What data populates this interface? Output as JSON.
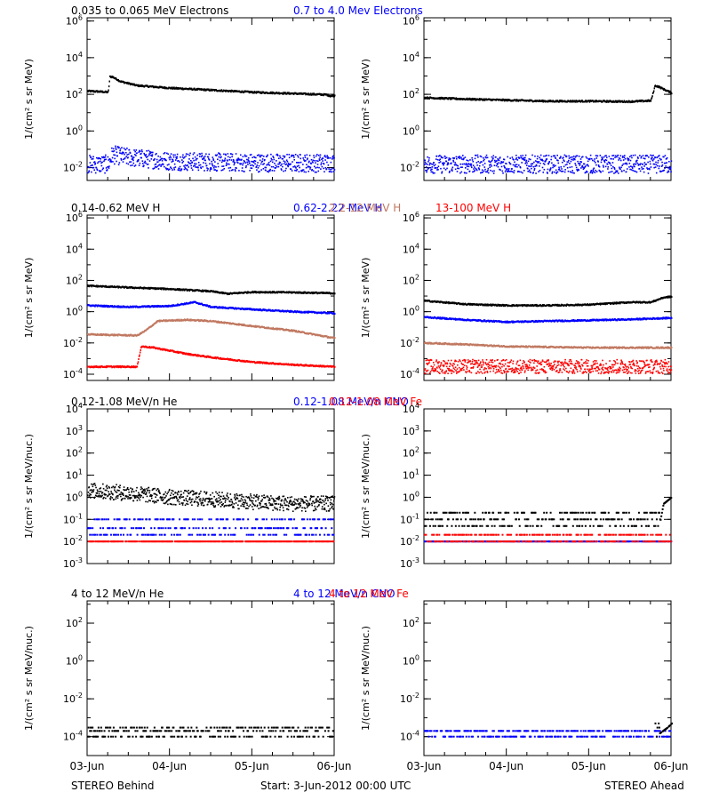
{
  "footer": {
    "left": "STEREO Behind",
    "center": "Start:  3-Jun-2012 00:00 UTC",
    "right": "STEREO Ahead"
  },
  "colors": {
    "black": "#000000",
    "blue": "#0000ff",
    "tan": "#c07860",
    "red": "#ff0000"
  },
  "chart_data": [
    {
      "type": "scatter",
      "panel": "electrons",
      "title_parts": [
        {
          "text": "0.035 to 0.065 MeV Electrons",
          "color": "black"
        },
        {
          "text": "0.7 to 4.0 Mev Electrons",
          "color": "blue"
        }
      ],
      "ylabel": "1/(cm² s sr MeV)",
      "y_scale": "log",
      "ylim": [
        0.002,
        1500000
      ],
      "y_ticks": [
        {
          "value": 0.01,
          "base": "10",
          "exp": "-2"
        },
        {
          "value": 1,
          "base": "10",
          "exp": "0"
        },
        {
          "value": 100,
          "base": "10",
          "exp": "2"
        },
        {
          "value": 10000,
          "base": "10",
          "exp": "4"
        },
        {
          "value": 1000000,
          "base": "10",
          "exp": "6"
        }
      ],
      "x_tick_labels": [
        "03-Jun",
        "04-Jun",
        "05-Jun",
        "06-Jun"
      ],
      "behind": [
        {
          "name": "0.035 to 0.065 MeV Electrons",
          "color": "black",
          "pattern": "line",
          "points": [
            [
              0,
              150
            ],
            [
              0.15,
              140
            ],
            [
              0.25,
              130
            ],
            [
              0.27,
              900
            ],
            [
              0.3,
              900
            ],
            [
              0.4,
              500
            ],
            [
              0.6,
              300
            ],
            [
              1.0,
              220
            ],
            [
              1.5,
              170
            ],
            [
              2.0,
              130
            ],
            [
              2.5,
              110
            ],
            [
              2.9,
              95
            ],
            [
              2.95,
              80
            ],
            [
              3.0,
              85
            ]
          ]
        },
        {
          "name": "0.7 to 4.0 Mev Electrons",
          "color": "blue",
          "pattern": "band",
          "points": [
            [
              0,
              0.015
            ],
            [
              0.25,
              0.015
            ],
            [
              0.3,
              0.05
            ],
            [
              0.5,
              0.035
            ],
            [
              1.0,
              0.022
            ],
            [
              2.0,
              0.018
            ],
            [
              3.0,
              0.017
            ]
          ],
          "spread": 0.5
        }
      ],
      "ahead": [
        {
          "name": "0.035 to 0.065 MeV Electrons",
          "color": "black",
          "pattern": "line",
          "points": [
            [
              0,
              65
            ],
            [
              0.5,
              55
            ],
            [
              1.0,
              48
            ],
            [
              1.5,
              42
            ],
            [
              2.0,
              42
            ],
            [
              2.5,
              40
            ],
            [
              2.75,
              45
            ],
            [
              2.8,
              300
            ],
            [
              2.85,
              250
            ],
            [
              2.95,
              150
            ],
            [
              3.0,
              120
            ]
          ]
        },
        {
          "name": "0.7 to 4.0 Mev Electrons",
          "color": "blue",
          "pattern": "band",
          "points": [
            [
              0,
              0.015
            ],
            [
              1.0,
              0.015
            ],
            [
              2.0,
              0.015
            ],
            [
              3.0,
              0.015
            ]
          ],
          "spread": 0.5
        }
      ]
    },
    {
      "type": "scatter",
      "panel": "protons",
      "title_parts": [
        {
          "text": "0.14-0.62 MeV H",
          "color": "black"
        },
        {
          "text": "0.62-2.22 MeV H",
          "color": "blue"
        },
        {
          "text": "2.2-12 MeV H",
          "color": "tan"
        },
        {
          "text": "13-100 MeV H",
          "color": "red"
        }
      ],
      "ylabel": "1/(cm² s sr MeV)",
      "y_scale": "log",
      "ylim": [
        4e-05,
        1500000
      ],
      "y_ticks": [
        {
          "value": 0.0001,
          "base": "10",
          "exp": "-4"
        },
        {
          "value": 0.01,
          "base": "10",
          "exp": "-2"
        },
        {
          "value": 1,
          "base": "10",
          "exp": "0"
        },
        {
          "value": 100,
          "base": "10",
          "exp": "2"
        },
        {
          "value": 10000,
          "base": "10",
          "exp": "4"
        },
        {
          "value": 1000000,
          "base": "10",
          "exp": "6"
        }
      ],
      "x_tick_labels": [
        "03-Jun",
        "04-Jun",
        "05-Jun",
        "06-Jun"
      ],
      "behind": [
        {
          "name": "0.14-0.62 MeV H",
          "color": "black",
          "pattern": "line",
          "points": [
            [
              0,
              45
            ],
            [
              0.5,
              35
            ],
            [
              1.0,
              28
            ],
            [
              1.5,
              20
            ],
            [
              1.7,
              14
            ],
            [
              2.0,
              18
            ],
            [
              2.5,
              17
            ],
            [
              3.0,
              15
            ]
          ]
        },
        {
          "name": "0.62-2.22 MeV H",
          "color": "blue",
          "pattern": "line",
          "points": [
            [
              0,
              2.5
            ],
            [
              0.5,
              2
            ],
            [
              1.0,
              2.3
            ],
            [
              1.3,
              4
            ],
            [
              1.5,
              2
            ],
            [
              2.0,
              1.4
            ],
            [
              2.5,
              1.0
            ],
            [
              3.0,
              0.8
            ]
          ]
        },
        {
          "name": "2.2-12 MeV H",
          "color": "tan",
          "pattern": "line",
          "points": [
            [
              0,
              0.035
            ],
            [
              0.6,
              0.03
            ],
            [
              0.7,
              0.06
            ],
            [
              0.85,
              0.25
            ],
            [
              1.2,
              0.3
            ],
            [
              1.5,
              0.25
            ],
            [
              2.0,
              0.12
            ],
            [
              2.5,
              0.06
            ],
            [
              3.0,
              0.02
            ]
          ]
        },
        {
          "name": "13-100 MeV H",
          "color": "red",
          "pattern": "line",
          "points": [
            [
              0,
              0.0003
            ],
            [
              0.6,
              0.0003
            ],
            [
              0.65,
              0.006
            ],
            [
              0.8,
              0.005
            ],
            [
              1.2,
              0.002
            ],
            [
              1.5,
              0.0012
            ],
            [
              2.0,
              0.0006
            ],
            [
              2.5,
              0.0004
            ],
            [
              3.0,
              0.0003
            ]
          ]
        }
      ],
      "ahead": [
        {
          "name": "0.14-0.62 MeV H",
          "color": "black",
          "pattern": "line",
          "points": [
            [
              0,
              5
            ],
            [
              0.5,
              3
            ],
            [
              1.0,
              2.5
            ],
            [
              1.5,
              2.5
            ],
            [
              2.0,
              2.8
            ],
            [
              2.5,
              4
            ],
            [
              2.75,
              4
            ],
            [
              2.9,
              8
            ],
            [
              3.0,
              9
            ]
          ]
        },
        {
          "name": "0.62-2.22 MeV H",
          "color": "blue",
          "pattern": "line",
          "points": [
            [
              0,
              0.45
            ],
            [
              0.5,
              0.3
            ],
            [
              1.0,
              0.22
            ],
            [
              1.5,
              0.25
            ],
            [
              2.0,
              0.28
            ],
            [
              2.5,
              0.32
            ],
            [
              3.0,
              0.4
            ]
          ]
        },
        {
          "name": "2.2-12 MeV H",
          "color": "tan",
          "pattern": "line",
          "points": [
            [
              0,
              0.01
            ],
            [
              0.5,
              0.008
            ],
            [
              1.0,
              0.006
            ],
            [
              2.0,
              0.005
            ],
            [
              3.0,
              0.005
            ]
          ]
        },
        {
          "name": "13-100 MeV H",
          "color": "red",
          "pattern": "band",
          "points": [
            [
              0,
              0.0003
            ],
            [
              3.0,
              0.0003
            ]
          ],
          "spread": 0.45
        }
      ]
    },
    {
      "type": "scatter",
      "panel": "low-energy-ions",
      "title_parts": [
        {
          "text": "0.12-1.08 MeV/n He",
          "color": "black"
        },
        {
          "text": "0.12-1.08 MeV/n CNO",
          "color": "blue"
        },
        {
          "text": "0.12-1.08 MeV Fe",
          "color": "red"
        }
      ],
      "ylabel": "1/(cm² s sr MeV/nuc.)",
      "y_scale": "log",
      "ylim": [
        0.001,
        10000
      ],
      "y_ticks": [
        {
          "value": 0.001,
          "base": "10",
          "exp": "-3"
        },
        {
          "value": 0.01,
          "base": "10",
          "exp": "-2"
        },
        {
          "value": 0.1,
          "base": "10",
          "exp": "-1"
        },
        {
          "value": 1,
          "base": "10",
          "exp": "0"
        },
        {
          "value": 10,
          "base": "10",
          "exp": "1"
        },
        {
          "value": 100,
          "base": "10",
          "exp": "2"
        },
        {
          "value": 1000,
          "base": "10",
          "exp": "3"
        },
        {
          "value": 10000,
          "base": "10",
          "exp": "4"
        }
      ],
      "x_tick_labels": [
        "03-Jun",
        "04-Jun",
        "05-Jun",
        "06-Jun"
      ],
      "behind": [
        {
          "name": "0.12-1.08 MeV/n He",
          "color": "black",
          "pattern": "band",
          "points": [
            [
              0,
              2.0
            ],
            [
              0.5,
              1.5
            ],
            [
              1.0,
              1.0
            ],
            [
              1.5,
              0.8
            ],
            [
              2.0,
              0.6
            ],
            [
              2.5,
              0.5
            ],
            [
              3.0,
              0.5
            ]
          ],
          "spread": 0.35
        },
        {
          "name": "0.12-1.08 MeV/n CNO",
          "color": "blue",
          "pattern": "steps",
          "points": [
            [
              0,
              0.02
            ],
            [
              3.0,
              0.02
            ]
          ],
          "levels": [
            0.02,
            0.04,
            0.1
          ]
        },
        {
          "name": "0.12-1.08 MeV Fe",
          "color": "red",
          "pattern": "steps",
          "points": [
            [
              0,
              0.01
            ],
            [
              3.0,
              0.01
            ]
          ],
          "levels": [
            0.01
          ]
        }
      ],
      "ahead": [
        {
          "name": "0.12-1.08 MeV/n He",
          "color": "black",
          "pattern": "steps",
          "points": [
            [
              0,
              0.05
            ],
            [
              2.85,
              0.05
            ],
            [
              2.9,
              0.5
            ],
            [
              3.0,
              1.0
            ]
          ],
          "levels": [
            0.05,
            0.1,
            0.2
          ]
        },
        {
          "name": "0.12-1.08 MeV/n CNO",
          "color": "blue",
          "pattern": "steps",
          "points": [
            [
              0,
              0.01
            ],
            [
              3.0,
              0.01
            ]
          ],
          "levels": [
            0.01
          ]
        },
        {
          "name": "0.12-1.08 MeV Fe",
          "color": "red",
          "pattern": "steps",
          "points": [
            [
              0,
              0.01
            ],
            [
              3.0,
              0.01
            ]
          ],
          "levels": [
            0.01,
            0.02
          ]
        }
      ]
    },
    {
      "type": "scatter",
      "panel": "high-energy-ions",
      "title_parts": [
        {
          "text": "4 to 12 MeV/n He",
          "color": "black"
        },
        {
          "text": "4 to 12 MeV/n CNO",
          "color": "blue"
        },
        {
          "text": "4 to 12 MeV Fe",
          "color": "red"
        }
      ],
      "ylabel": "1/(cm² s sr MeV/nuc.)",
      "y_scale": "log",
      "ylim": [
        1e-05,
        1500
      ],
      "y_ticks": [
        {
          "value": 0.0001,
          "base": "10",
          "exp": "-4"
        },
        {
          "value": 0.01,
          "base": "10",
          "exp": "-2"
        },
        {
          "value": 1,
          "base": "10",
          "exp": "0"
        },
        {
          "value": 100,
          "base": "10",
          "exp": "2"
        }
      ],
      "x_tick_labels": [
        "03-Jun",
        "04-Jun",
        "05-Jun",
        "06-Jun"
      ],
      "behind": [
        {
          "name": "4 to 12 MeV/n He",
          "color": "black",
          "pattern": "steps",
          "points": [
            [
              0,
              0.0001
            ],
            [
              3.0,
              0.0001
            ]
          ],
          "levels": [
            0.0001,
            0.0002,
            0.0003
          ]
        },
        {
          "name": "4 to 12 MeV/n CNO",
          "color": "blue",
          "pattern": "steps",
          "points": [
            [
              0,
              1e-05
            ],
            [
              3.0,
              1e-05
            ]
          ],
          "levels": [
            1e-05
          ]
        }
      ],
      "ahead": [
        {
          "name": "4 to 12 MeV/n He",
          "color": "blue",
          "pattern": "steps",
          "points": [
            [
              0,
              0.0001
            ],
            [
              3.0,
              0.0001
            ]
          ],
          "levels": [
            0.0001,
            0.0002
          ]
        },
        {
          "name": "4 to 12 MeV/n CNO",
          "color": "black",
          "pattern": "steps",
          "points": [
            [
              2.8,
              0.0001
            ],
            [
              2.95,
              0.0003
            ],
            [
              3.0,
              0.0005
            ]
          ],
          "levels": [
            0.0001,
            0.0003,
            0.0005
          ]
        }
      ]
    }
  ]
}
